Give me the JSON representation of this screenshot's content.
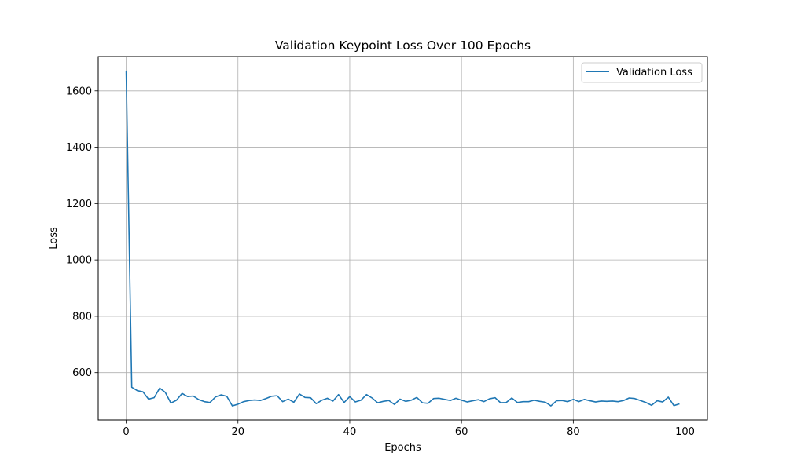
{
  "chart_data": {
    "type": "line",
    "title": "Validation Keypoint Loss Over 100 Epochs",
    "xlabel": "Epochs",
    "ylabel": "Loss",
    "xlim": [
      -5,
      104
    ],
    "ylim": [
      432,
      1722
    ],
    "xticks": [
      0,
      20,
      40,
      60,
      80,
      100
    ],
    "yticks": [
      600,
      800,
      1000,
      1200,
      1400,
      1600
    ],
    "grid": true,
    "legend_position": "top-right",
    "series": [
      {
        "name": "Validation Loss",
        "color": "#1f77b4",
        "x": [
          0,
          1,
          2,
          3,
          4,
          5,
          6,
          7,
          8,
          9,
          10,
          11,
          12,
          13,
          14,
          15,
          16,
          17,
          18,
          19,
          20,
          21,
          22,
          23,
          24,
          25,
          26,
          27,
          28,
          29,
          30,
          31,
          32,
          33,
          34,
          35,
          36,
          37,
          38,
          39,
          40,
          41,
          42,
          43,
          44,
          45,
          46,
          47,
          48,
          49,
          50,
          51,
          52,
          53,
          54,
          55,
          56,
          57,
          58,
          59,
          60,
          61,
          62,
          63,
          64,
          65,
          66,
          67,
          68,
          69,
          70,
          71,
          72,
          73,
          74,
          75,
          76,
          77,
          78,
          79,
          80,
          81,
          82,
          83,
          84,
          85,
          86,
          87,
          88,
          89,
          90,
          91,
          92,
          93,
          94,
          95,
          96,
          97,
          98,
          99
        ],
        "values": [
          1672,
          548,
          536,
          532,
          506,
          511,
          545,
          530,
          492,
          502,
          526,
          515,
          517,
          504,
          497,
          494,
          514,
          521,
          516,
          482,
          488,
          497,
          501,
          503,
          501,
          508,
          516,
          518,
          497,
          506,
          495,
          524,
          512,
          511,
          490,
          502,
          509,
          499,
          522,
          494,
          515,
          496,
          502,
          522,
          510,
          493,
          498,
          501,
          487,
          506,
          498,
          502,
          512,
          493,
          491,
          508,
          509,
          505,
          501,
          509,
          502,
          496,
          500,
          504,
          497,
          507,
          511,
          493,
          494,
          510,
          494,
          497,
          497,
          502,
          498,
          495,
          482,
          500,
          501,
          497,
          505,
          497,
          505,
          500,
          496,
          499,
          498,
          499,
          497,
          501,
          510,
          508,
          501,
          494,
          484,
          500,
          496,
          513,
          483,
          489
        ]
      }
    ]
  }
}
